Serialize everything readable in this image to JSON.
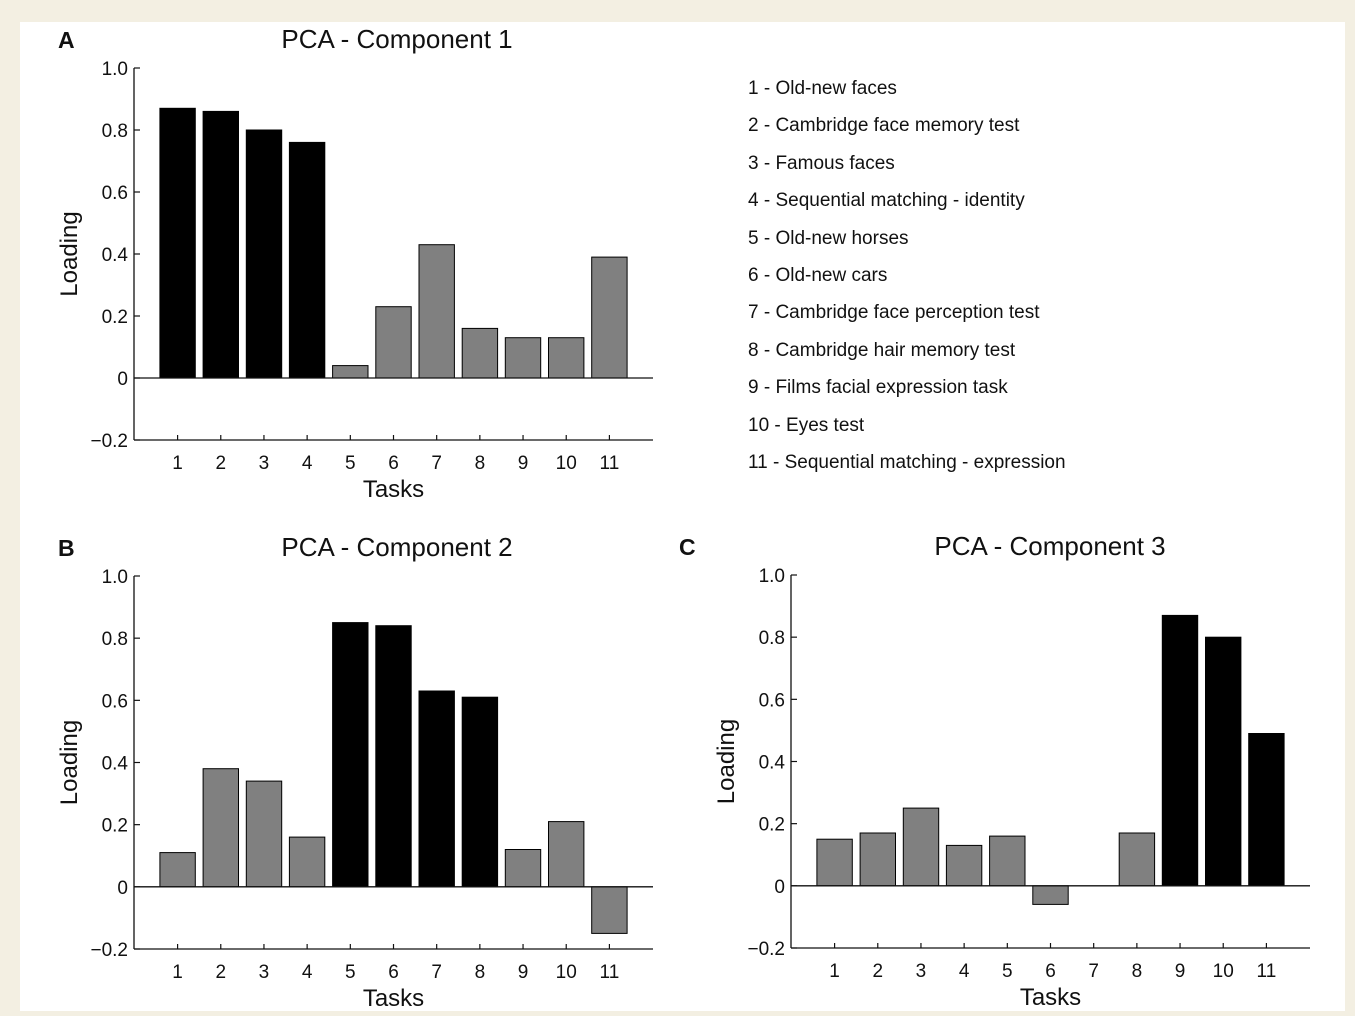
{
  "chart_data": [
    {
      "type": "bar",
      "panel_label": "A",
      "title": "PCA - Component 1",
      "xlabel": "Tasks",
      "ylabel": "Loading",
      "ylim": [
        -0.2,
        1.0
      ],
      "yticks": [
        "−0.2",
        "0",
        "0.2",
        "0.4",
        "0.6",
        "0.8",
        "1.0"
      ],
      "categories": [
        "1",
        "2",
        "3",
        "4",
        "5",
        "6",
        "7",
        "8",
        "9",
        "10",
        "11"
      ],
      "values": [
        0.87,
        0.86,
        0.8,
        0.76,
        0.04,
        0.23,
        0.43,
        0.16,
        0.13,
        0.13,
        0.39
      ],
      "highlighted": [
        true,
        true,
        true,
        true,
        false,
        false,
        false,
        false,
        false,
        false,
        false
      ]
    },
    {
      "type": "bar",
      "panel_label": "B",
      "title": "PCA - Component 2",
      "xlabel": "Tasks",
      "ylabel": "Loading",
      "ylim": [
        -0.2,
        1.0
      ],
      "yticks": [
        "−0.2",
        "0",
        "0.2",
        "0.4",
        "0.6",
        "0.8",
        "1.0"
      ],
      "categories": [
        "1",
        "2",
        "3",
        "4",
        "5",
        "6",
        "7",
        "8",
        "9",
        "10",
        "11"
      ],
      "values": [
        0.11,
        0.38,
        0.34,
        0.16,
        0.85,
        0.84,
        0.63,
        0.61,
        0.12,
        0.21,
        -0.15
      ],
      "highlighted": [
        false,
        false,
        false,
        false,
        true,
        true,
        true,
        true,
        false,
        false,
        false
      ]
    },
    {
      "type": "bar",
      "panel_label": "C",
      "title": "PCA - Component 3",
      "xlabel": "Tasks",
      "ylabel": "Loading",
      "ylim": [
        -0.2,
        1.0
      ],
      "yticks": [
        "−0.2",
        "0",
        "0.2",
        "0.4",
        "0.6",
        "0.8",
        "1.0"
      ],
      "categories": [
        "1",
        "2",
        "3",
        "4",
        "5",
        "6",
        "7",
        "8",
        "9",
        "10",
        "11"
      ],
      "values": [
        0.15,
        0.17,
        0.25,
        0.13,
        0.16,
        -0.06,
        0.0,
        0.17,
        0.87,
        0.8,
        0.49
      ],
      "highlighted": [
        false,
        false,
        false,
        false,
        false,
        false,
        false,
        false,
        true,
        true,
        true
      ]
    }
  ],
  "legend": [
    "1 - Old-new faces",
    "2 - Cambridge face memory test",
    "3 - Famous faces",
    "4 - Sequential matching - identity",
    "5 - Old-new horses",
    "6 - Old-new cars",
    "7 - Cambridge face perception test",
    "8 - Cambridge hair memory test",
    "9 - Films facial expression task",
    "10 - Eyes test",
    "11 - Sequential matching - expression"
  ],
  "colors": {
    "highlighted_bar": "#000000",
    "other_bar": "#808080",
    "axis": "#111111",
    "background": "#ffffff",
    "border": "#f3efe2"
  }
}
